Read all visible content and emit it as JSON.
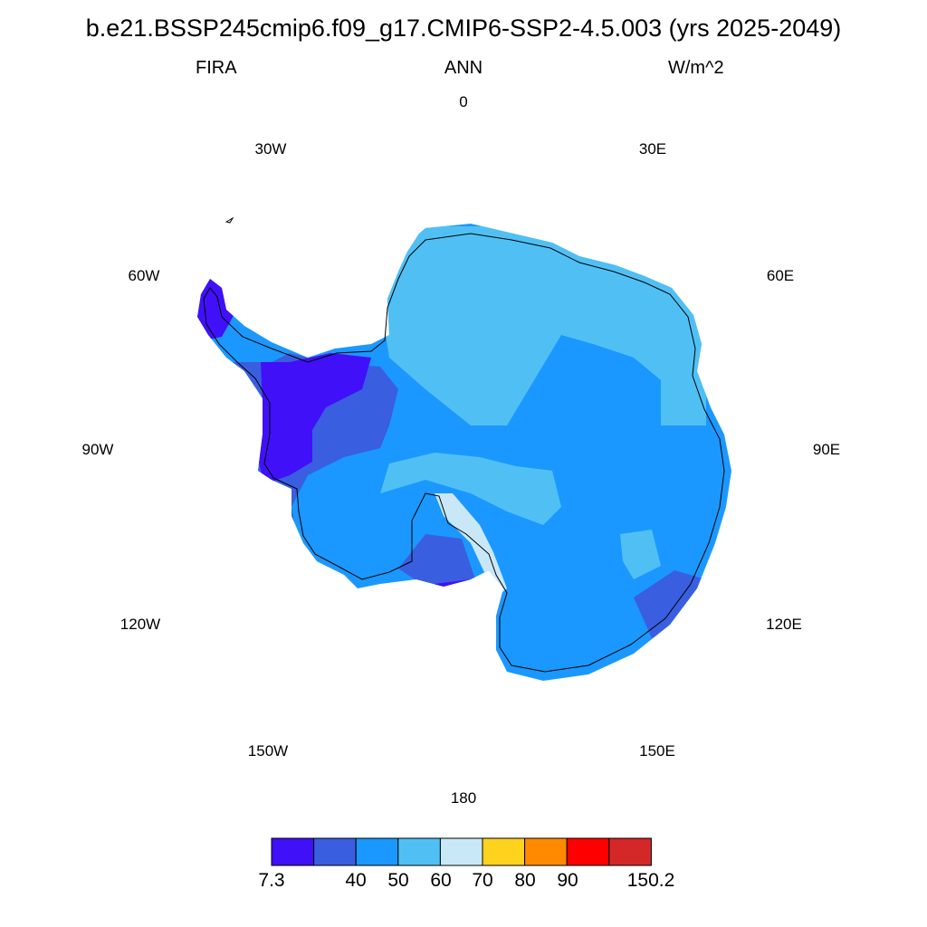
{
  "title": "b.e21.BSSP245cmip6.f09_g17.CMIP6-SSP2-4.5.003 (yrs 2025-2049)",
  "variable": "FIRA",
  "season": "ANN",
  "units": "W/m^2",
  "longitude_labels": {
    "lon_0": "0",
    "lon_30e": "30E",
    "lon_60e": "60E",
    "lon_90e": "90E",
    "lon_120e": "120E",
    "lon_150e": "150E",
    "lon_180": "180",
    "lon_150w": "150W",
    "lon_120w": "120W",
    "lon_90w": "90W",
    "lon_60w": "60W",
    "lon_30w": "30W"
  },
  "colorbar": {
    "colors": [
      "#4010f8",
      "#3a5ee0",
      "#1a98ff",
      "#50c0f4",
      "#c8e8f8",
      "#ffd21e",
      "#ff8a00",
      "#ff0000",
      "#d42828"
    ],
    "labels": {
      "min": "7.3",
      "b40": "40",
      "b50": "50",
      "b60": "60",
      "b70": "70",
      "b80": "80",
      "b90": "90",
      "max": "150.2"
    }
  },
  "map_colors": {
    "ocean": "#ffffff",
    "coast": "#000000"
  }
}
